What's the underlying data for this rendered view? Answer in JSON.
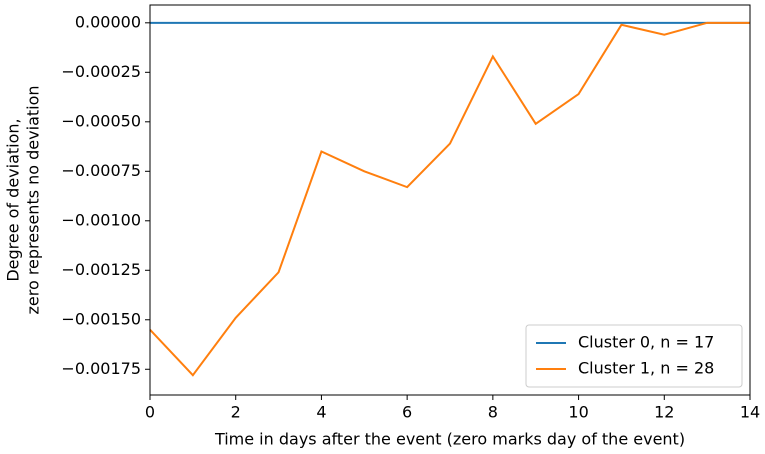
{
  "chart_data": {
    "type": "line",
    "xlabel": "Time in days after the event (zero marks day of the event)",
    "ylabel": [
      "Degree of deviation,",
      "zero represents no deviation"
    ],
    "x": [
      0,
      1,
      2,
      3,
      4,
      5,
      6,
      7,
      8,
      9,
      10,
      11,
      12,
      13,
      14
    ],
    "series": [
      {
        "name": "Cluster 0, n = 17",
        "color": "#1f77b4",
        "values": [
          0,
          0,
          0,
          0,
          0,
          0,
          0,
          0,
          0,
          0,
          0,
          0,
          0,
          0,
          0
        ]
      },
      {
        "name": "Cluster 1, n = 28",
        "color": "#ff7f0e",
        "values": [
          -0.00155,
          -0.00178,
          -0.00149,
          -0.00126,
          -0.00065,
          -0.00075,
          -0.00083,
          -0.00061,
          -0.00017,
          -0.00051,
          -0.00036,
          -1e-05,
          -6e-05,
          0,
          0
        ]
      }
    ],
    "xlim": [
      0,
      14
    ],
    "xticks": [
      0,
      2,
      4,
      6,
      8,
      10,
      12,
      14
    ],
    "ylim": [
      -0.00188,
      9e-05
    ],
    "yticks": [
      {
        "value": 0,
        "label": "0.00000"
      },
      {
        "value": -0.00025,
        "label": "−0.00025"
      },
      {
        "value": -0.0005,
        "label": "−0.00050"
      },
      {
        "value": -0.00075,
        "label": "−0.00075"
      },
      {
        "value": -0.001,
        "label": "−0.00100"
      },
      {
        "value": -0.00125,
        "label": "−0.00125"
      },
      {
        "value": -0.0015,
        "label": "−0.00150"
      },
      {
        "value": -0.00175,
        "label": "−0.00175"
      }
    ],
    "legend": "lower right"
  }
}
